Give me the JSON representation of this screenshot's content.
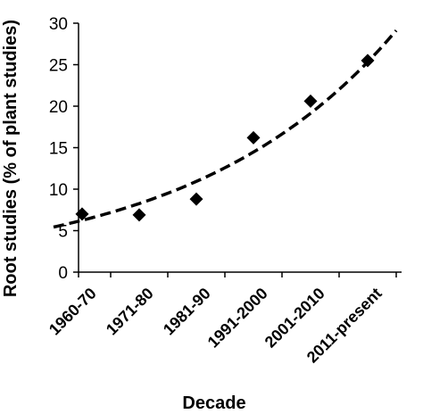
{
  "chart_data": {
    "type": "scatter",
    "title": "",
    "xlabel": "Decade",
    "ylabel": "Root studies (% of plant studies)",
    "ylim": [
      0,
      30
    ],
    "yticks": [
      0,
      5,
      10,
      15,
      20,
      25,
      30
    ],
    "categories": [
      "1960-70",
      "1971-80",
      "1981-90",
      "1991-2000",
      "2001-2010",
      "2011-present"
    ],
    "series": [
      {
        "marker": "diamond",
        "values": [
          7.0,
          6.9,
          8.8,
          16.2,
          20.6,
          25.5
        ]
      }
    ],
    "trendline": {
      "type": "exponential",
      "style": "dashed",
      "x_start": 0.5,
      "x_end": 6.5,
      "a": 4.72,
      "b": 0.28
    },
    "grid": false,
    "legend": "none"
  }
}
